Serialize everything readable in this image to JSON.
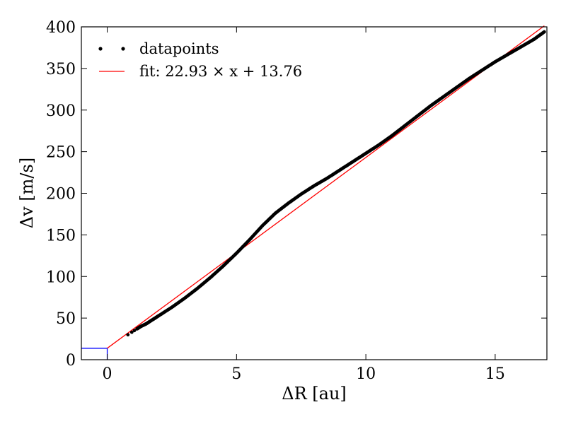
{
  "chart_data": {
    "type": "scatter",
    "xlabel": "ΔR [au]",
    "ylabel": "Δv [m/s]",
    "xlim": [
      -1,
      17
    ],
    "ylim": [
      0,
      400
    ],
    "xticks": [
      0,
      5,
      10,
      15
    ],
    "yticks": [
      0,
      50,
      100,
      150,
      200,
      250,
      300,
      350,
      400
    ],
    "xtick_labels": [
      "0",
      "5",
      "10",
      "15"
    ],
    "ytick_labels": [
      "0",
      "50",
      "100",
      "150",
      "200",
      "250",
      "300",
      "350",
      "400"
    ],
    "legend": {
      "placement": "top-left",
      "entries": [
        "datapoints",
        "fit: 22.93 × x + 13.76"
      ]
    },
    "series": [
      {
        "name": "datapoints",
        "color": "#000000",
        "marker": "dot",
        "x": [
          0.8,
          0.95,
          1.05,
          1.15,
          1.3,
          1.5,
          1.75,
          2.0,
          2.5,
          3.0,
          3.5,
          4.0,
          4.5,
          5.0,
          5.5,
          6.0,
          6.5,
          7.0,
          7.5,
          8.0,
          8.5,
          9.0,
          9.5,
          10.0,
          10.5,
          11.0,
          11.5,
          12.0,
          12.5,
          13.0,
          13.5,
          14.0,
          14.5,
          15.0,
          15.5,
          16.0,
          16.5,
          16.9
        ],
        "y": [
          30,
          33,
          35,
          37,
          40,
          43,
          48,
          53,
          63,
          74,
          86,
          99,
          113,
          128,
          144,
          161,
          176,
          188,
          199,
          209,
          218,
          228,
          238,
          248,
          258,
          269,
          281,
          293,
          305,
          316,
          327,
          338,
          348,
          358,
          367,
          376,
          385,
          394
        ]
      },
      {
        "name": "fit: 22.93 × x + 13.76",
        "color": "#ff0000",
        "type": "line",
        "slope": 22.93,
        "intercept": 13.76,
        "x_range": [
          0,
          16.9
        ]
      }
    ],
    "reference_lines": {
      "color": "#0000ff",
      "x": 0,
      "y": 13.76
    }
  }
}
